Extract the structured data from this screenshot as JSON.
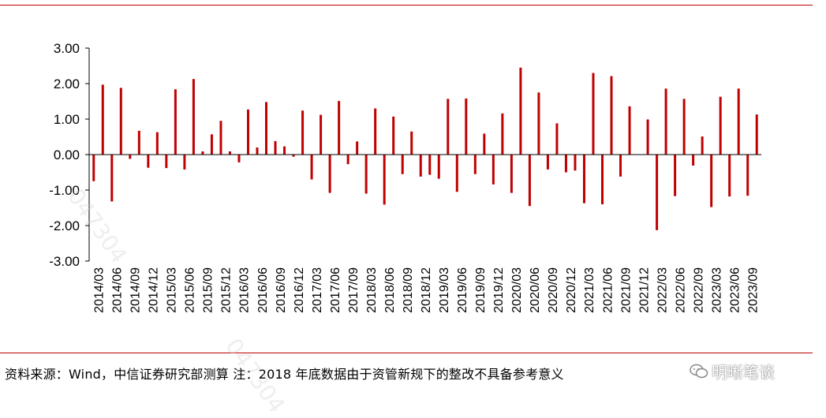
{
  "footer": {
    "source_note": "资料来源：Wind，中信证券研究部测算  注：2018 年底数据由于资管新规下的整改不具备参考意义"
  },
  "watermark": {
    "brand": "明晰笔谈",
    "code_1": "047304",
    "code_2": "047304"
  },
  "colors": {
    "bar": "#c00000",
    "rule": "#c00000",
    "axis": "#000000"
  },
  "chart_data": {
    "type": "bar",
    "title": "",
    "xlabel": "",
    "ylabel": "",
    "ylim": [
      -3,
      3
    ],
    "yticks": [
      3,
      2,
      1,
      0,
      -1,
      -2,
      -3
    ],
    "ytick_labels": [
      "3.00",
      "2.00",
      "1.00",
      "0.00",
      "-1.00",
      "-2.00",
      "-3.00"
    ],
    "tick_labels": [
      "2014/03",
      "2014/06",
      "2014/09",
      "2014/12",
      "2015/03",
      "2015/06",
      "2015/09",
      "2015/12",
      "2016/03",
      "2016/06",
      "2016/09",
      "2016/12",
      "2017/03",
      "2017/06",
      "2017/09",
      "2018/03",
      "2018/06",
      "2018/09",
      "2018/12",
      "2019/03",
      "2019/06",
      "2019/09",
      "2019/12",
      "2020/03",
      "2020/06",
      "2020/09",
      "2020/12",
      "2021/03",
      "2021/06",
      "2021/09",
      "2021/12",
      "2022/03",
      "2022/06",
      "2022/09",
      "2023/03",
      "2023/06",
      "2023/09"
    ],
    "values": [
      -0.75,
      1.97,
      -1.32,
      1.88,
      -0.12,
      0.67,
      -0.37,
      0.63,
      -0.38,
      1.84,
      -0.42,
      2.13,
      0.09,
      0.57,
      0.95,
      0.09,
      -0.22,
      1.27,
      0.2,
      1.48,
      0.38,
      0.23,
      -0.06,
      1.24,
      -0.7,
      1.12,
      -1.08,
      1.51,
      -0.27,
      0.37,
      -1.1,
      1.3,
      -1.41,
      1.07,
      -0.55,
      0.65,
      -0.62,
      -0.57,
      -0.68,
      1.57,
      -1.05,
      1.58,
      -0.55,
      0.59,
      -0.84,
      1.16,
      -1.08,
      2.45,
      -1.45,
      1.75,
      -0.42,
      0.88,
      -0.5,
      -0.45,
      -1.37,
      2.3,
      -1.4,
      2.21,
      -0.62,
      1.36,
      0.0,
      0.99,
      -2.13,
      1.86,
      -1.17,
      1.57,
      -0.31,
      0.51,
      -1.48,
      1.63,
      -1.18,
      1.86,
      -1.16,
      1.13
    ]
  }
}
